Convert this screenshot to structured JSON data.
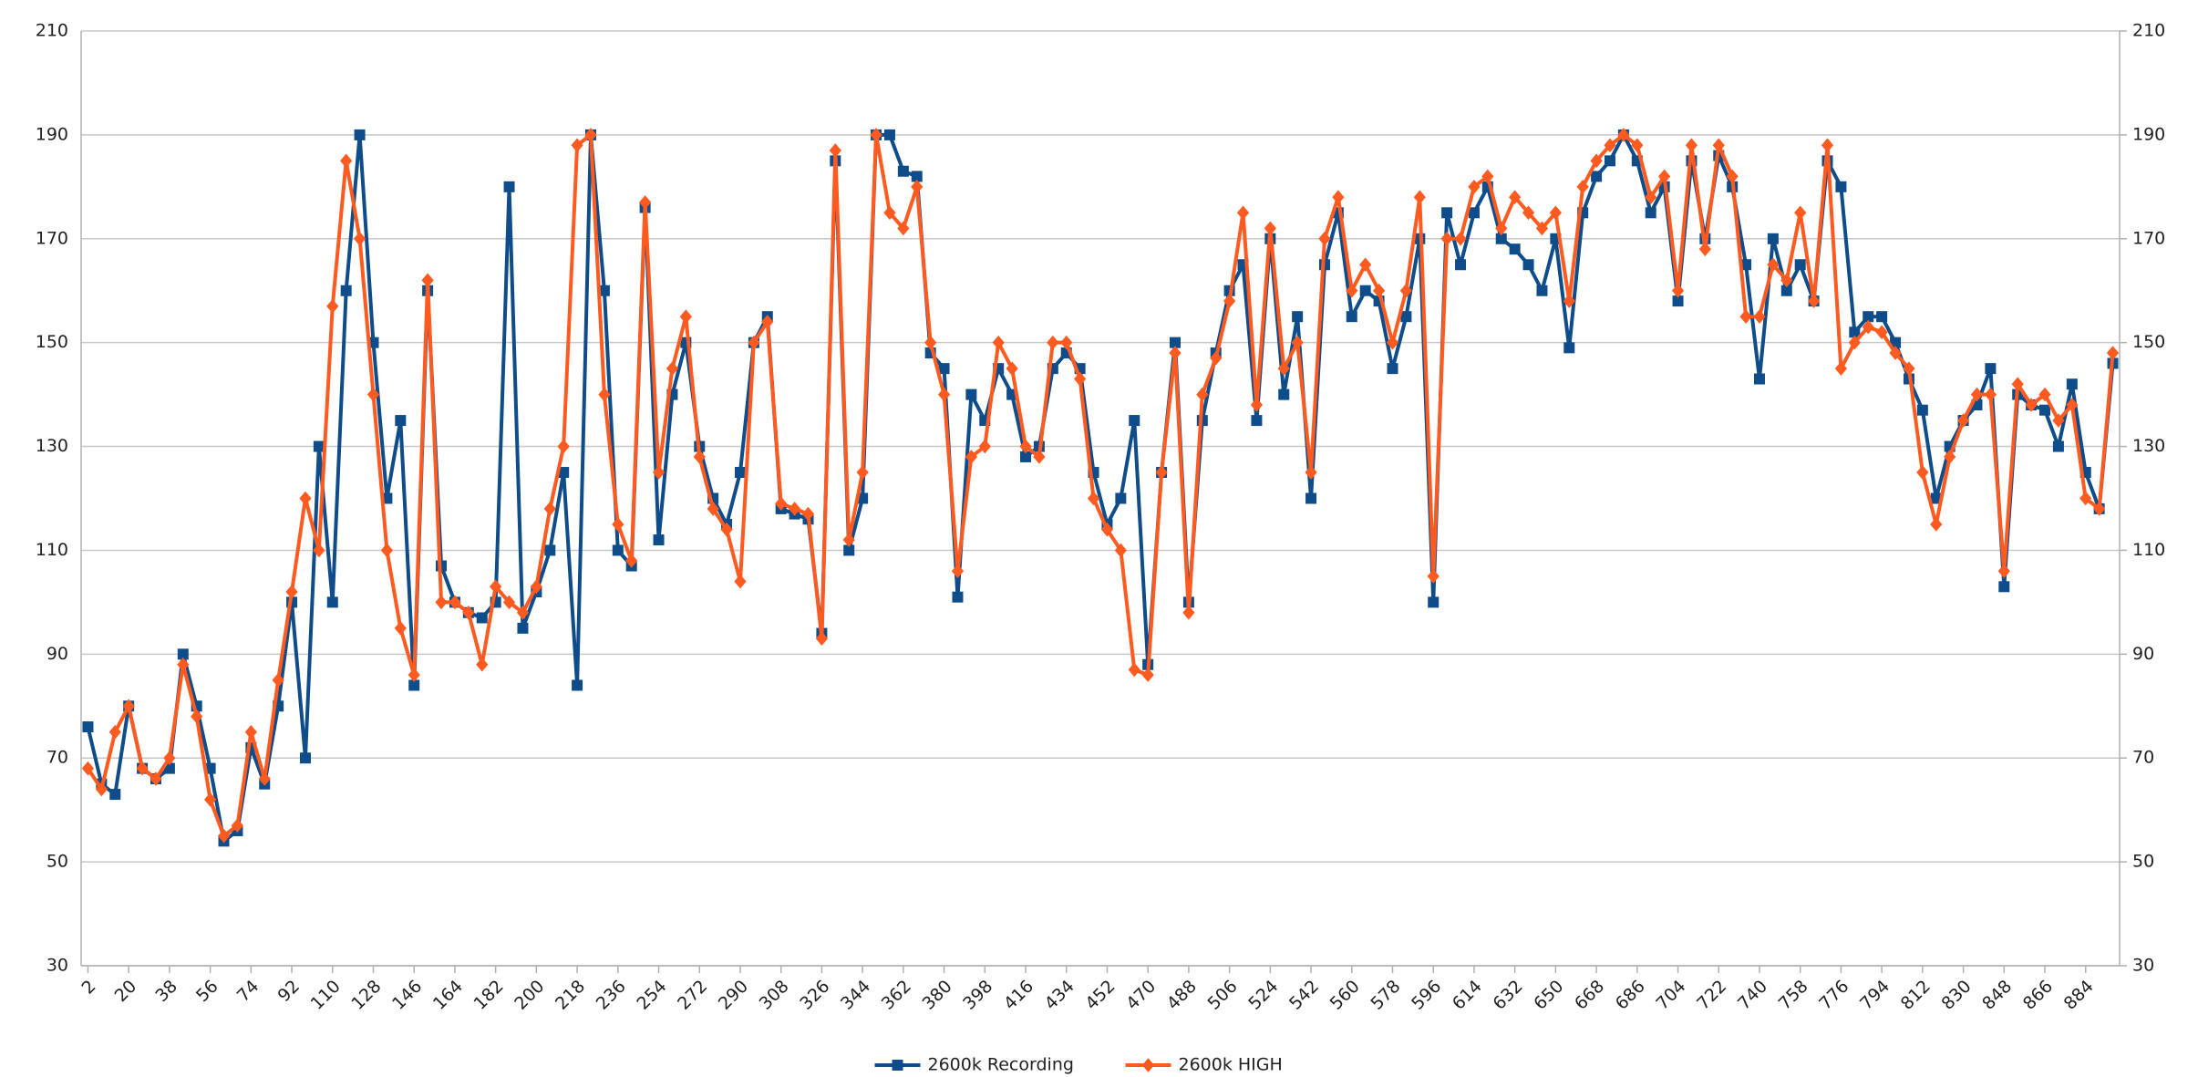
{
  "chart_data": {
    "type": "line",
    "categories": [
      2,
      null,
      null,
      20,
      null,
      null,
      38,
      null,
      null,
      56,
      null,
      null,
      74,
      null,
      null,
      92,
      null,
      null,
      110,
      null,
      null,
      128,
      null,
      null,
      146,
      null,
      null,
      164,
      null,
      null,
      182,
      null,
      null,
      200,
      null,
      null,
      218,
      null,
      null,
      236,
      null,
      null,
      254,
      null,
      null,
      272,
      null,
      null,
      290,
      null,
      null,
      308,
      null,
      null,
      326,
      null,
      null,
      344,
      null,
      null,
      362,
      null,
      null,
      380,
      null,
      null,
      398,
      null,
      null,
      416,
      null,
      null,
      434,
      null,
      null,
      452,
      null,
      null,
      470,
      null,
      null,
      488,
      null,
      null,
      506,
      null,
      null,
      524,
      null,
      null,
      542,
      null,
      null,
      560,
      null,
      null,
      578,
      null,
      null,
      596,
      null,
      null,
      614,
      null,
      null,
      632,
      null,
      null,
      650,
      null,
      null,
      668,
      null,
      null,
      686,
      null,
      null,
      704,
      null,
      null,
      722,
      null,
      null,
      740,
      null,
      null,
      758,
      null,
      null,
      776,
      null,
      null,
      794,
      null,
      null,
      812,
      null,
      null,
      830,
      null,
      null,
      848,
      null,
      null,
      866,
      null,
      null,
      884,
      null,
      null
    ],
    "series": [
      {
        "name": "2600k Recording",
        "color": "#0f4c8a",
        "marker": "square",
        "values": [
          76,
          65,
          63,
          80,
          68,
          66,
          68,
          90,
          80,
          68,
          54,
          56,
          72,
          65,
          80,
          100,
          70,
          130,
          100,
          160,
          190,
          150,
          120,
          135,
          84,
          160,
          107,
          100,
          98,
          97,
          100,
          180,
          95,
          102,
          110,
          125,
          84,
          190,
          160,
          110,
          107,
          176,
          112,
          140,
          150,
          130,
          120,
          115,
          125,
          150,
          155,
          118,
          117,
          116,
          94,
          185,
          110,
          120,
          190,
          190,
          183,
          182,
          148,
          145,
          101,
          140,
          135,
          145,
          140,
          128,
          130,
          145,
          148,
          145,
          125,
          115,
          120,
          135,
          88,
          125,
          150,
          100,
          135,
          148,
          160,
          165,
          135,
          170,
          140,
          155,
          120,
          165,
          175,
          155,
          160,
          158,
          145,
          155,
          170,
          100,
          175,
          165,
          175,
          180,
          170,
          168,
          165,
          160,
          170,
          149,
          175,
          182,
          185,
          190,
          185,
          175,
          180,
          158,
          185,
          170,
          186,
          180,
          165,
          143,
          170,
          160,
          165,
          158,
          185,
          180,
          152,
          155,
          155,
          150,
          143,
          137,
          120,
          130,
          135,
          138,
          145,
          103,
          140,
          138,
          137,
          130,
          142,
          125,
          118,
          146
        ]
      },
      {
        "name": "2600k HIGH",
        "color": "#ff5a1f",
        "marker": "diamond",
        "values": [
          68,
          64,
          75,
          80,
          68,
          66,
          70,
          88,
          78,
          62,
          55,
          57,
          75,
          66,
          85,
          102,
          120,
          110,
          157,
          185,
          170,
          140,
          110,
          95,
          86,
          162,
          100,
          100,
          98,
          88,
          103,
          100,
          98,
          103,
          118,
          130,
          188,
          190,
          140,
          115,
          108,
          177,
          125,
          145,
          155,
          128,
          118,
          114,
          104,
          150,
          154,
          119,
          118,
          117,
          93,
          187,
          112,
          125,
          190,
          175,
          172,
          180,
          150,
          140,
          106,
          128,
          130,
          150,
          145,
          130,
          128,
          150,
          150,
          143,
          120,
          114,
          110,
          87,
          86,
          125,
          148,
          98,
          140,
          147,
          158,
          175,
          138,
          172,
          145,
          150,
          125,
          170,
          178,
          160,
          165,
          160,
          150,
          160,
          178,
          105,
          170,
          170,
          180,
          182,
          172,
          178,
          175,
          172,
          175,
          158,
          180,
          185,
          188,
          190,
          188,
          178,
          182,
          160,
          188,
          168,
          188,
          182,
          155,
          155,
          165,
          162,
          175,
          158,
          188,
          145,
          150,
          153,
          152,
          148,
          145,
          125,
          115,
          128,
          135,
          140,
          140,
          106,
          142,
          138,
          140,
          135,
          138,
          120,
          118,
          148
        ]
      }
    ],
    "ylim": [
      30,
      210
    ],
    "yticks": [
      30,
      50,
      70,
      90,
      110,
      130,
      150,
      170,
      190,
      210
    ],
    "y2lim": [
      30,
      210
    ],
    "y2ticks": [
      30,
      50,
      70,
      90,
      110,
      130,
      150,
      170,
      190,
      210
    ],
    "grid": true,
    "legend": "bottom"
  }
}
